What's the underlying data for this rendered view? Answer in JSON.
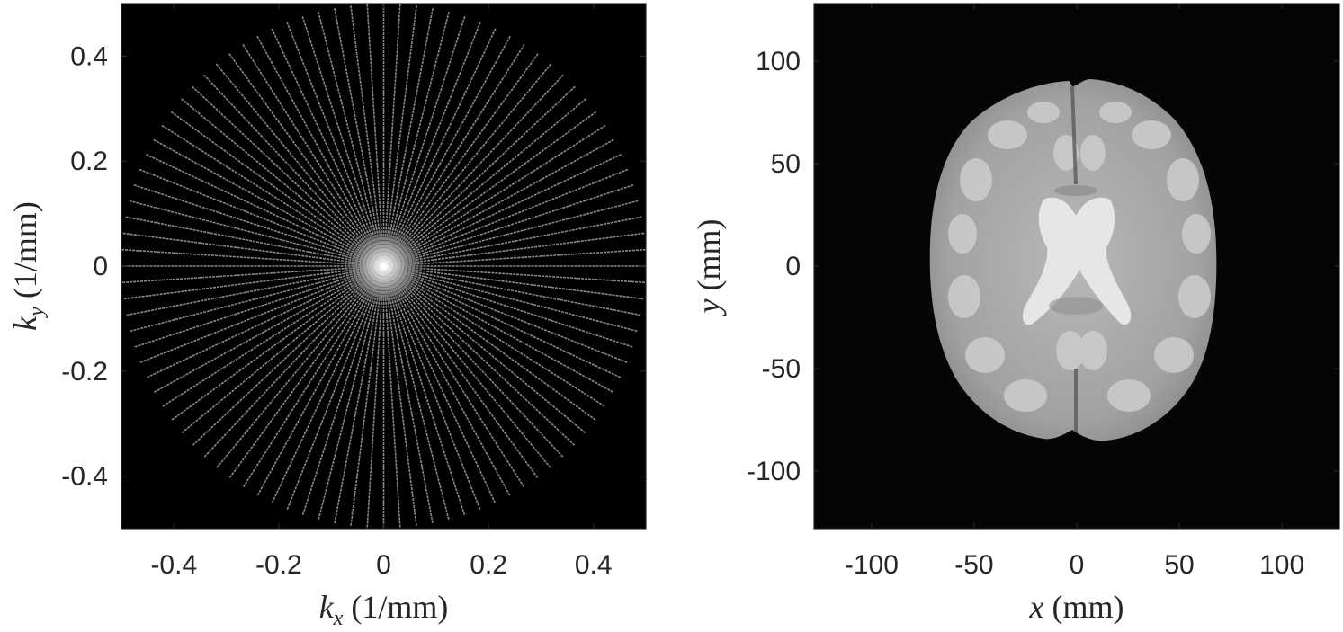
{
  "panels": [
    {
      "name": "kspace",
      "xaxis": {
        "label_var": "k",
        "label_sub": "x",
        "label_unit": " (1/mm)",
        "range": [
          -0.5,
          0.5
        ],
        "ticks": [
          -0.4,
          -0.2,
          0,
          0.2,
          0.4
        ],
        "tick_labels": [
          "-0.4",
          "-0.2",
          "0",
          "0.2",
          "0.4"
        ]
      },
      "yaxis": {
        "label_var": "k",
        "label_sub": "y",
        "label_unit": " (1/mm)",
        "range": [
          -0.5,
          0.5
        ],
        "ticks": [
          0.4,
          0.2,
          0,
          -0.2,
          -0.4
        ],
        "tick_labels": [
          "0.4",
          "0.2",
          "0",
          "-0.2",
          "-0.4"
        ]
      },
      "image": "radial k-space sampling spokes",
      "spoke_count": 50,
      "colors": {
        "background": "#000000",
        "spokes": "#8a8a8a",
        "center": "#ffffff"
      }
    },
    {
      "name": "brain",
      "xaxis": {
        "label_var": "x",
        "label_unit": " (mm)",
        "range": [
          -128,
          128
        ],
        "ticks": [
          -100,
          -50,
          0,
          50,
          100
        ],
        "tick_labels": [
          "-100",
          "-50",
          "0",
          "50",
          "100"
        ]
      },
      "yaxis": {
        "label_var": "y",
        "label_unit": " (mm)",
        "range": [
          -128,
          128
        ],
        "ticks": [
          100,
          50,
          0,
          -50,
          -100
        ],
        "tick_labels": [
          "100",
          "50",
          "0",
          "-50",
          "-100"
        ]
      },
      "image": "axial brain MRI reconstruction",
      "colors": {
        "background": "#050505",
        "tissue": "#9a9a9a",
        "white_matter": "#c8c8c8"
      }
    }
  ]
}
